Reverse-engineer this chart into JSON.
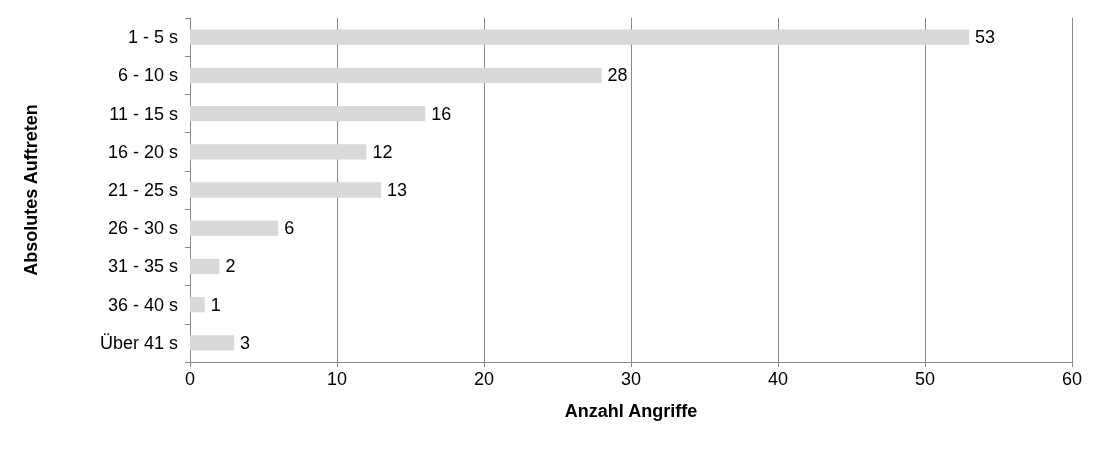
{
  "chart_data": {
    "type": "bar",
    "orientation": "horizontal",
    "xlabel": "Anzahl Angriffe",
    "ylabel": "Absolutes Auftreten",
    "categories": [
      "1 - 5 s",
      "6 - 10 s",
      "11 - 15 s",
      "16 - 20 s",
      "21 - 25 s",
      "26 - 30 s",
      "31 - 35 s",
      "36 - 40 s",
      "Über 41 s"
    ],
    "values": [
      53,
      28,
      16,
      12,
      13,
      6,
      2,
      1,
      3
    ],
    "color": "#d9d9d9",
    "xlim": [
      0,
      60
    ],
    "xticks": [
      0,
      10,
      20,
      30,
      40,
      50,
      60
    ],
    "grid": "x",
    "data_labels": true
  }
}
